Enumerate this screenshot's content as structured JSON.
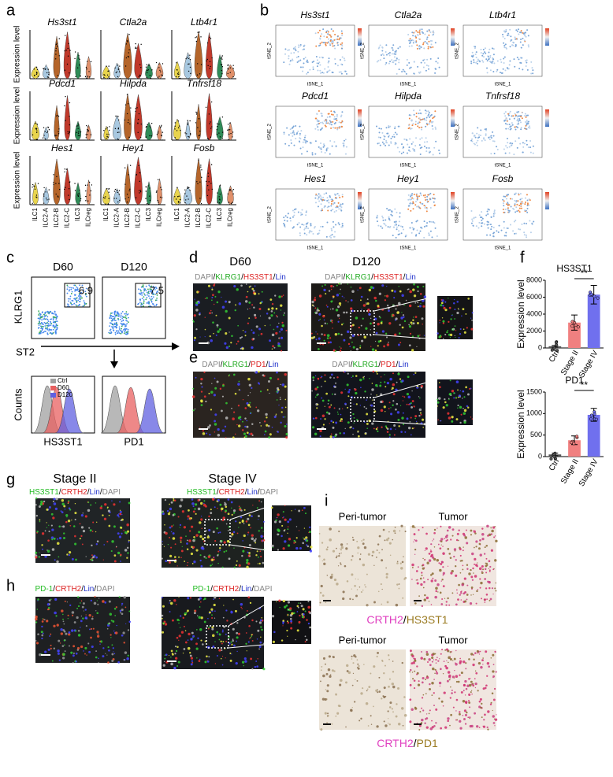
{
  "panel_labels": [
    "a",
    "b",
    "c",
    "d",
    "e",
    "f",
    "g",
    "h",
    "i"
  ],
  "separator": "/",
  "a": {
    "genes": [
      "Hs3st1",
      "Ctla2a",
      "Ltb4r1",
      "Pdcd1",
      "Hilpda",
      "Tnfrsf18",
      "Hes1",
      "Hey1",
      "Fosb"
    ],
    "y_label": "Expression level",
    "categories": [
      "ILC1",
      "ILC2-A",
      "ILC2-B",
      "ILC2-C",
      "ILC3",
      "ILCreg"
    ]
  },
  "b": {
    "genes": [
      "Hs3st1",
      "Ctla2a",
      "Ltb4r1",
      "Pdcd1",
      "Hilpda",
      "Tnfrsf18",
      "Hes1",
      "Hey1",
      "Fosb"
    ],
    "x_label": "tSNE_1",
    "y_label": "tSNE_2"
  },
  "c": {
    "conditions": [
      "D60",
      "D120"
    ],
    "gate_percent": [
      6.9,
      7.5
    ],
    "y_label": "KLRG1",
    "x_label": "ST2",
    "hist_y_label": "Counts",
    "hist_markers": [
      "HS3ST1",
      "PD1"
    ],
    "legend": [
      "Ctrl",
      "D60",
      "D120"
    ],
    "legend_colors": [
      "#a0a0a0",
      "#e86060",
      "#6060e0"
    ]
  },
  "d": {
    "conditions": [
      "D60",
      "D120"
    ],
    "stains": [
      "DAPI",
      "KLRG1",
      "HS3ST1",
      "Lin"
    ],
    "stain_colors": [
      "#888888",
      "#22aa22",
      "#dd2222",
      "#2233cc"
    ]
  },
  "e": {
    "stains": [
      "DAPI",
      "KLRG1",
      "PD1",
      "Lin"
    ],
    "stain_colors": [
      "#888888",
      "#22aa22",
      "#dd2222",
      "#2233cc"
    ]
  },
  "g": {
    "stages": [
      "Stage II",
      "Stage IV"
    ],
    "stains": [
      "HS3ST1",
      "CRTH2",
      "Lin",
      "DAPI"
    ],
    "stain_colors": [
      "#22bb22",
      "#dd2222",
      "#2233cc",
      "#888888"
    ]
  },
  "h": {
    "stains": [
      "PD-1",
      "CRTH2",
      "Lin",
      "DAPI"
    ],
    "stain_colors": [
      "#22bb22",
      "#dd2222",
      "#2233cc",
      "#888888"
    ]
  },
  "i": {
    "regions": [
      "Peri-tumor",
      "Tumor"
    ],
    "rows": [
      {
        "stains": [
          "CRTH2",
          "HS3ST1"
        ]
      },
      {
        "stains": [
          "CRTH2",
          "PD1"
        ]
      }
    ],
    "stain_colors": [
      "#e040c0",
      "#9a7a20"
    ]
  },
  "chart_data": [
    {
      "type": "bar",
      "title": "HS3ST1",
      "y_label": "Expression level",
      "categories": [
        "Ctrl",
        "Stage II",
        "Stage IV"
      ],
      "values": [
        200,
        3000,
        6300
      ],
      "errors": [
        100,
        900,
        1100
      ],
      "colors": [
        "#555555",
        "#f08080",
        "#7070ee"
      ],
      "ylim": [
        0,
        8000
      ],
      "yticks": [
        0,
        2000,
        4000,
        6000,
        8000
      ],
      "annotation": "**"
    },
    {
      "type": "bar",
      "title": "PD1",
      "y_label": "Expression level",
      "categories": [
        "Ctrl",
        "Stage II",
        "Stage IV"
      ],
      "values": [
        50,
        380,
        970
      ],
      "errors": [
        30,
        100,
        150
      ],
      "colors": [
        "#555555",
        "#f08080",
        "#7070ee"
      ],
      "ylim": [
        0,
        1500
      ],
      "yticks": [
        0,
        500,
        1000,
        1500
      ],
      "annotation": "**"
    }
  ]
}
